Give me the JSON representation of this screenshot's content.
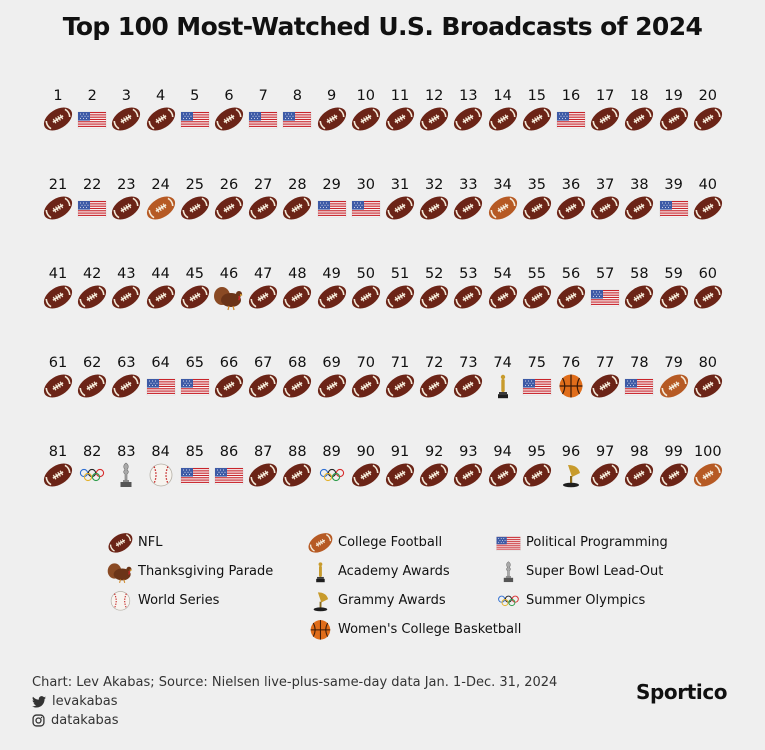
{
  "title": "Top 100 Most-Watched U.S. Broadcasts of 2024",
  "chart_data": {
    "type": "table",
    "title": "Top 100 Most-Watched U.S. Broadcasts of 2024",
    "ranks": [
      1,
      2,
      3,
      4,
      5,
      6,
      7,
      8,
      9,
      10,
      11,
      12,
      13,
      14,
      15,
      16,
      17,
      18,
      19,
      20,
      21,
      22,
      23,
      24,
      25,
      26,
      27,
      28,
      29,
      30,
      31,
      32,
      33,
      34,
      35,
      36,
      37,
      38,
      39,
      40,
      41,
      42,
      43,
      44,
      45,
      46,
      47,
      48,
      49,
      50,
      51,
      52,
      53,
      54,
      55,
      56,
      57,
      58,
      59,
      60,
      61,
      62,
      63,
      64,
      65,
      66,
      67,
      68,
      69,
      70,
      71,
      72,
      73,
      74,
      75,
      76,
      77,
      78,
      79,
      80,
      81,
      82,
      83,
      84,
      85,
      86,
      87,
      88,
      89,
      90,
      91,
      92,
      93,
      94,
      95,
      96,
      97,
      98,
      99,
      100
    ],
    "categories_by_rank": [
      "NFL",
      "Political Programming",
      "NFL",
      "NFL",
      "Political Programming",
      "NFL",
      "Political Programming",
      "Political Programming",
      "NFL",
      "NFL",
      "NFL",
      "NFL",
      "NFL",
      "NFL",
      "NFL",
      "Political Programming",
      "NFL",
      "NFL",
      "NFL",
      "NFL",
      "NFL",
      "Political Programming",
      "NFL",
      "College Football",
      "NFL",
      "NFL",
      "NFL",
      "NFL",
      "Political Programming",
      "Political Programming",
      "NFL",
      "NFL",
      "NFL",
      "College Football",
      "NFL",
      "NFL",
      "NFL",
      "NFL",
      "Political Programming",
      "NFL",
      "NFL",
      "NFL",
      "NFL",
      "NFL",
      "NFL",
      "Thanksgiving Parade",
      "NFL",
      "NFL",
      "NFL",
      "NFL",
      "NFL",
      "NFL",
      "NFL",
      "NFL",
      "NFL",
      "NFL",
      "Political Programming",
      "NFL",
      "NFL",
      "NFL",
      "NFL",
      "NFL",
      "NFL",
      "Political Programming",
      "Political Programming",
      "NFL",
      "NFL",
      "NFL",
      "NFL",
      "NFL",
      "NFL",
      "NFL",
      "NFL",
      "Academy Awards",
      "Political Programming",
      "Women's College Basketball",
      "NFL",
      "Political Programming",
      "College Football",
      "NFL",
      "NFL",
      "Summer Olympics",
      "Super Bowl Lead-Out",
      "World Series",
      "Political Programming",
      "Political Programming",
      "NFL",
      "NFL",
      "Summer Olympics",
      "NFL",
      "NFL",
      "NFL",
      "NFL",
      "NFL",
      "NFL",
      "Grammy Awards",
      "NFL",
      "NFL",
      "NFL",
      "College Football"
    ]
  },
  "legend": [
    {
      "label": "NFL",
      "icon": "nfl-football-icon"
    },
    {
      "label": "College Football",
      "icon": "college-football-icon"
    },
    {
      "label": "Political Programming",
      "icon": "us-flag-icon"
    },
    {
      "label": "Thanksgiving Parade",
      "icon": "turkey-icon"
    },
    {
      "label": "Academy Awards",
      "icon": "oscar-icon"
    },
    {
      "label": "Super Bowl Lead-Out",
      "icon": "trophy-icon"
    },
    {
      "label": "World Series",
      "icon": "baseball-icon"
    },
    {
      "label": "Grammy Awards",
      "icon": "gramophone-icon"
    },
    {
      "label": "Summer Olympics",
      "icon": "olympic-rings-icon"
    },
    {
      "label": "Women's College Basketball",
      "icon": "basketball-icon"
    }
  ],
  "colors": {
    "nfl": "#6b2417",
    "college_football": "#b65a24",
    "flag_red": "#c8242b",
    "flag_blue": "#3d5aa6",
    "basketball": "#e06d1a",
    "gold": "#c89b2c"
  },
  "footer": {
    "source": "Chart: Lev Akabas; Source: Nielsen live-plus-same-day data Jan. 1-Dec. 31, 2024",
    "twitter": "levakabas",
    "instagram": "datakabas",
    "brand": "Sportico"
  }
}
